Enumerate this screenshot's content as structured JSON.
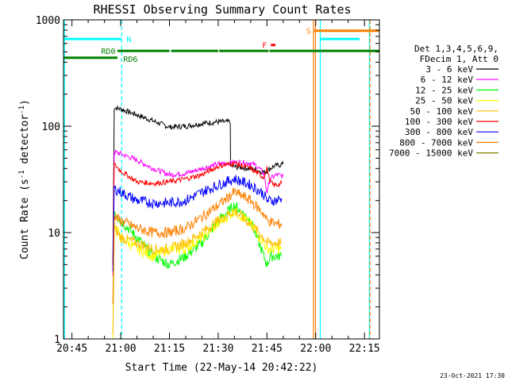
{
  "chart_data": {
    "type": "line",
    "title": "RHESSI Observing Summary Count Rates",
    "xlabel": "Start Time (22-May-14 20:42:22)",
    "ylabel_main": "Count Rate (s",
    "ylabel_sup1": "-1",
    "ylabel_mid": " detector",
    "ylabel_sup2": "-1",
    "ylabel_end": ")",
    "y_scale": "log",
    "ylim": [
      1,
      1000
    ],
    "xlim_minutes": [
      -17.6,
      79.6
    ],
    "x_ticks": [
      {
        "m": -15,
        "label": "20:45"
      },
      {
        "m": 0,
        "label": "21:00"
      },
      {
        "m": 15,
        "label": "21:15"
      },
      {
        "m": 30,
        "label": "21:30"
      },
      {
        "m": 45,
        "label": "21:45"
      },
      {
        "m": 60,
        "label": "22:00"
      },
      {
        "m": 75,
        "label": "22:15"
      }
    ],
    "y_ticks": [
      {
        "v": 1,
        "label": "1"
      },
      {
        "v": 10,
        "label": "10"
      },
      {
        "v": 100,
        "label": "100"
      },
      {
        "v": 1000,
        "label": "1000"
      }
    ],
    "legend_header": [
      "Det 1,3,4,5,6,9,",
      "FDecim 1, Att 0"
    ],
    "legend_position": "right",
    "series": [
      {
        "name": "3 - 6 keV",
        "color": "#000000",
        "t": [
          -2.4,
          -2,
          0,
          5,
          10,
          15,
          20,
          25,
          30,
          33.7,
          33.8,
          40,
          44,
          44.5,
          47,
          50
        ],
        "v": [
          5,
          150,
          145,
          128,
          112,
          98,
          100,
          106,
          110,
          110,
          42,
          40,
          37,
          37,
          42,
          44
        ]
      },
      {
        "name": "6 - 12 keV",
        "color": "#ff00ff",
        "t": [
          -2.4,
          -2,
          0,
          5,
          10,
          15,
          20,
          25,
          30,
          35,
          40,
          42,
          44,
          45,
          46,
          48,
          50
        ],
        "v": [
          4,
          57,
          55,
          48,
          40,
          35,
          36,
          40,
          44,
          46,
          45,
          42,
          36,
          24,
          32,
          35,
          34
        ]
      },
      {
        "name": "12 - 25 keV",
        "color": "#00ff00",
        "t": [
          -2.4,
          -2,
          0,
          5,
          10,
          15,
          20,
          25,
          30,
          35,
          40,
          44,
          45,
          46,
          48,
          49.5
        ],
        "v": [
          2,
          16,
          13,
          9,
          6,
          5,
          6,
          8,
          13,
          18,
          13,
          6,
          5,
          6,
          6,
          6
        ]
      },
      {
        "name": "25 - 50 keV",
        "color": "#ffff00",
        "t": [
          -2.4,
          -2,
          0,
          5,
          10,
          15,
          20,
          25,
          30,
          35,
          40,
          44,
          45,
          46,
          48,
          49.5
        ],
        "v": [
          1,
          12,
          9,
          7,
          6,
          7,
          7,
          9,
          12,
          16,
          12,
          8,
          7,
          7,
          7,
          7
        ]
      },
      {
        "name": "50 - 100 keV",
        "color": "#ffc000",
        "t": [
          -2.4,
          -2,
          0,
          5,
          10,
          15,
          20,
          25,
          30,
          35,
          40,
          44,
          45,
          49.5
        ],
        "v": [
          1,
          11,
          9,
          8,
          7,
          7,
          8,
          10,
          13,
          16,
          12,
          9,
          8,
          8
        ]
      },
      {
        "name": "100 - 300 keV",
        "color": "#ff0000",
        "t": [
          -2.4,
          -2,
          0,
          5,
          10,
          15,
          20,
          25,
          30,
          35,
          40,
          44,
          45,
          46,
          47,
          48,
          49.5
        ],
        "v": [
          5,
          44,
          38,
          30,
          29,
          30,
          32,
          35,
          42,
          45,
          40,
          33,
          40,
          30,
          28,
          28,
          29
        ]
      },
      {
        "name": "300 - 800 keV",
        "color": "#0000ff",
        "t": [
          -2.4,
          -2,
          0,
          5,
          10,
          15,
          20,
          25,
          30,
          35,
          40,
          44,
          45,
          48,
          49.5
        ],
        "v": [
          4,
          26,
          24,
          20,
          19,
          19,
          20,
          24,
          28,
          32,
          28,
          23,
          20,
          20,
          21
        ]
      },
      {
        "name": "800 - 7000 keV",
        "color": "#ff8000",
        "t": [
          -2.4,
          -2,
          0,
          5,
          10,
          15,
          20,
          25,
          30,
          35,
          40,
          44,
          45,
          48,
          49.5
        ],
        "v": [
          2,
          14,
          13,
          11,
          10,
          10,
          11,
          14,
          18,
          24,
          20,
          15,
          13,
          12,
          12
        ]
      },
      {
        "name": "7000 - 15000 keV",
        "color": "#808000",
        "t": [
          -2.4,
          -2,
          0,
          5,
          10,
          15,
          20,
          25,
          30,
          35,
          40,
          45,
          49.5
        ],
        "v": [
          1,
          1,
          1,
          1,
          1,
          1,
          1,
          1,
          1,
          1,
          1,
          1,
          1
        ]
      }
    ],
    "flag_bars": [
      {
        "label": "N",
        "color": "#00ffff",
        "level": 660,
        "segments": [
          [
            -17.6,
            0.3
          ],
          [
            61.5,
            73.5
          ]
        ]
      },
      {
        "label": "RD0",
        "color": "#008000",
        "level": 440,
        "segments": [
          [
            -17.6,
            -1
          ]
        ]
      },
      {
        "label": "RD6",
        "color": "#008000",
        "level": 510,
        "segments": [
          [
            -1,
            15
          ],
          [
            15.5,
            30
          ],
          [
            30.3,
            45.5
          ],
          [
            45.8,
            79.6
          ]
        ]
      },
      {
        "label": "F",
        "color": "#ff0000",
        "level": 580,
        "segments": [
          [
            46.2,
            47.6
          ]
        ]
      },
      {
        "label": "S",
        "color": "#ff8000",
        "level": 790,
        "segments": [
          [
            59.5,
            79.6
          ]
        ]
      }
    ],
    "vertical_markers": [
      {
        "m": -17.3,
        "color": "#00ffff",
        "dashed": false
      },
      {
        "m": 0.3,
        "color": "#00ffff",
        "dashed": true
      },
      {
        "m": 59.3,
        "color": "#ff8000",
        "dashed": false
      },
      {
        "m": 59.9,
        "color": "#ff8000",
        "dashed": false
      },
      {
        "m": 61.4,
        "color": "#00ffff",
        "dashed": false
      },
      {
        "m": 76.5,
        "color": "#00ffff",
        "dashed": false
      },
      {
        "m": 76.7,
        "color": "#ff8000",
        "dashed": true
      }
    ]
  },
  "footer_date": "23-Oct-2021 17:30"
}
